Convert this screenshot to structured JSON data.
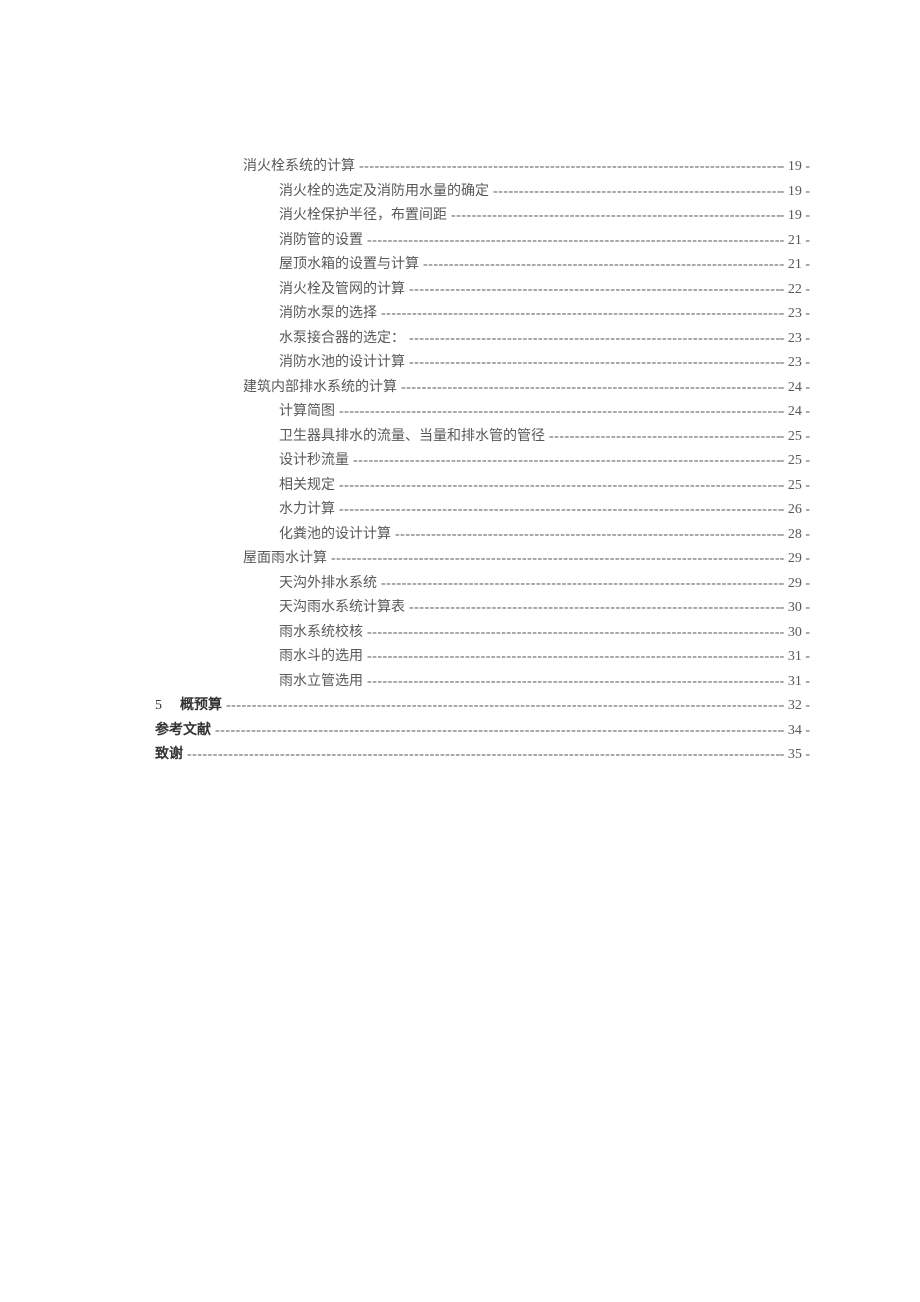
{
  "toc": {
    "entries": [
      {
        "level": 1,
        "title": "消火栓系统的计算",
        "page": "- 19 -",
        "bold": false
      },
      {
        "level": 2,
        "title": "消火栓的选定及消防用水量的确定",
        "page": "- 19 -",
        "bold": false
      },
      {
        "level": 2,
        "title": "消火栓保护半径，布置间距",
        "page": "- 19 -",
        "bold": false
      },
      {
        "level": 2,
        "title": "消防管的设置",
        "page": "- 21 -",
        "bold": false
      },
      {
        "level": 2,
        "title": "屋顶水箱的设置与计算",
        "page": "- 21 -",
        "bold": false
      },
      {
        "level": 2,
        "title": "消火栓及管网的计算",
        "page": "- 22 -",
        "bold": false
      },
      {
        "level": 2,
        "title": "消防水泵的选择",
        "page": "- 23 -",
        "bold": false
      },
      {
        "level": 2,
        "title": "水泵接合器的选定：",
        "page": "- 23 -",
        "bold": false
      },
      {
        "level": 2,
        "title": "消防水池的设计计算",
        "page": "- 23 -",
        "bold": false
      },
      {
        "level": 1,
        "title": "建筑内部排水系统的计算",
        "page": "- 24 -",
        "bold": false
      },
      {
        "level": 2,
        "title": "计算简图",
        "page": "- 24 -",
        "bold": false
      },
      {
        "level": 2,
        "title": "卫生器具排水的流量、当量和排水管的管径",
        "page": "- 25 -",
        "bold": false
      },
      {
        "level": 2,
        "title": "设计秒流量",
        "page": "- 25 -",
        "bold": false
      },
      {
        "level": 2,
        "title": "相关规定",
        "page": "- 25 -",
        "bold": false
      },
      {
        "level": 2,
        "title": "水力计算",
        "page": "- 26 -",
        "bold": false
      },
      {
        "level": 2,
        "title": "化粪池的设计计算",
        "page": "- 28 -",
        "bold": false
      },
      {
        "level": 1,
        "title": "屋面雨水计算",
        "page": "- 29 -",
        "bold": false
      },
      {
        "level": 2,
        "title": "天沟外排水系统",
        "page": "- 29 -",
        "bold": false
      },
      {
        "level": 2,
        "title": "天沟雨水系统计算表",
        "page": "- 30 -",
        "bold": false
      },
      {
        "level": 2,
        "title": "雨水系统校核",
        "page": "- 30 -",
        "bold": false
      },
      {
        "level": 2,
        "title": "雨水斗的选用",
        "page": "- 31 -",
        "bold": false
      },
      {
        "level": 2,
        "title": "雨水立管选用",
        "page": "- 31 -",
        "bold": false
      },
      {
        "level": 0,
        "prefix": "5",
        "title": "概预算",
        "page": "- 32 -",
        "bold": true
      },
      {
        "level": 0,
        "title": "参考文献",
        "page": "- 34 -",
        "bold": true
      },
      {
        "level": 0,
        "title": "致谢",
        "page": "- 35 -",
        "bold": true
      }
    ]
  },
  "styling": {
    "fontsize": 14,
    "line_height": 24.5,
    "text_color": "#595959",
    "bold_color": "#333333",
    "background_color": "#ffffff",
    "indent_level_0": 0,
    "indent_level_1": 88,
    "indent_level_2": 124
  }
}
